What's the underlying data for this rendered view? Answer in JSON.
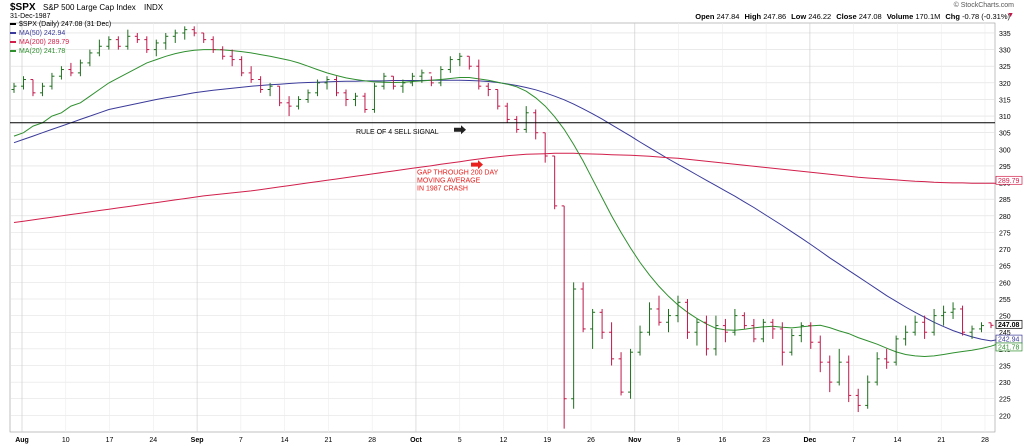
{
  "header": {
    "symbol": "$SPX",
    "name": "S&P 500 Large Cap Index",
    "exchange": "INDX",
    "date": "31-Dec-1987",
    "watermark": "© StockCharts.com",
    "ohlc": [
      {
        "label": "Open",
        "value": "247.84"
      },
      {
        "label": "High",
        "value": "247.86"
      },
      {
        "label": "Low",
        "value": "246.22"
      },
      {
        "label": "Close",
        "value": "247.08"
      },
      {
        "label": "Volume",
        "value": "170.1M"
      },
      {
        "label": "Chg",
        "value": "-0.78 (-0.31%)"
      }
    ]
  },
  "legend": [
    {
      "label": "$SPX (Daily) 247.08 (31 Dec)",
      "color": "#000000"
    },
    {
      "label": "MA(50) 242.94",
      "color": "#3a3a9a"
    },
    {
      "label": "MA(200) 289.79",
      "color": "#d11f4b"
    },
    {
      "label": "MA(20) 241.78",
      "color": "#2f8f2f"
    }
  ],
  "annotations": {
    "rule_label": "RULE OF 4 SELL SIGNAL",
    "gap_lines": [
      "GAP THROUGH 200 DAY",
      "MOVING AVERAGE",
      "IN 1987 CRASH"
    ]
  },
  "colors": {
    "up_bar": "#1f6f1f",
    "down_bar": "#c0184a",
    "ma50": "#3a3a9a",
    "ma200": "#d11f4b",
    "ma20": "#2f8f2f",
    "grid": "#dddddd",
    "annotation": "#e8201e"
  },
  "chart_data": {
    "type": "ohlc",
    "title": "$SPX S&P 500 Large Cap Index",
    "ylim": [
      215,
      338
    ],
    "yticks": [
      220,
      225,
      230,
      235,
      240,
      245,
      250,
      255,
      260,
      265,
      270,
      275,
      280,
      285,
      290,
      295,
      300,
      305,
      310,
      315,
      320,
      325,
      330,
      335
    ],
    "horizontal_line": 308,
    "x_ticks": [
      "Aug",
      "10",
      "17",
      "24",
      "Sep",
      "7",
      "14",
      "21",
      "28",
      "Oct",
      "5",
      "12",
      "19",
      "26",
      "Nov",
      "9",
      "16",
      "23",
      "Dec",
      "7",
      "14",
      "21",
      "28"
    ],
    "bars": [
      [
        318,
        320,
        317,
        319
      ],
      [
        319,
        322,
        318,
        321
      ],
      [
        321,
        321,
        316,
        317
      ],
      [
        317,
        320,
        316,
        319
      ],
      [
        319,
        323,
        318,
        322
      ],
      [
        322,
        325,
        321,
        324
      ],
      [
        324,
        326,
        322,
        323
      ],
      [
        323,
        327,
        322,
        326
      ],
      [
        326,
        330,
        325,
        329
      ],
      [
        329,
        333,
        328,
        331
      ],
      [
        331,
        334,
        330,
        333
      ],
      [
        333,
        334,
        330,
        331
      ],
      [
        331,
        336,
        330,
        334
      ],
      [
        334,
        335,
        332,
        333
      ],
      [
        333,
        334,
        329,
        330
      ],
      [
        330,
        333,
        328,
        332
      ],
      [
        332,
        335,
        330,
        334
      ],
      [
        334,
        336,
        332,
        335
      ],
      [
        335,
        337,
        333,
        336
      ],
      [
        336,
        337,
        334,
        335
      ],
      [
        335,
        335,
        332,
        333
      ],
      [
        333,
        334,
        329,
        330
      ],
      [
        330,
        331,
        327,
        328
      ],
      [
        328,
        330,
        325,
        327
      ],
      [
        327,
        328,
        322,
        323
      ],
      [
        323,
        325,
        320,
        321
      ],
      [
        321,
        322,
        317,
        318
      ],
      [
        318,
        320,
        316,
        319
      ],
      [
        319,
        319,
        313,
        314
      ],
      [
        314,
        316,
        310,
        313
      ],
      [
        313,
        316,
        312,
        315
      ],
      [
        315,
        318,
        314,
        317
      ],
      [
        317,
        321,
        316,
        320
      ],
      [
        320,
        322,
        318,
        321
      ],
      [
        321,
        322,
        316,
        317
      ],
      [
        317,
        318,
        313,
        315
      ],
      [
        315,
        317,
        313,
        316
      ],
      [
        316,
        317,
        311,
        312
      ],
      [
        312,
        320,
        311,
        319
      ],
      [
        319,
        323,
        318,
        322
      ],
      [
        322,
        322,
        318,
        319
      ],
      [
        319,
        321,
        317,
        320
      ],
      [
        320,
        323,
        319,
        322
      ],
      [
        322,
        324,
        320,
        323
      ],
      [
        323,
        322,
        319,
        320
      ],
      [
        320,
        325,
        319,
        324
      ],
      [
        324,
        328,
        323,
        327
      ],
      [
        327,
        329,
        325,
        328
      ],
      [
        328,
        328,
        324,
        325
      ],
      [
        325,
        327,
        318,
        319
      ],
      [
        319,
        320,
        316,
        318
      ],
      [
        318,
        318,
        312,
        313
      ],
      [
        313,
        314,
        308,
        309
      ],
      [
        309,
        310,
        305,
        306
      ],
      [
        306,
        313,
        305,
        311
      ],
      [
        311,
        312,
        303,
        305
      ],
      [
        305,
        305,
        296,
        298
      ],
      [
        298,
        298,
        282,
        283
      ],
      [
        283,
        283,
        216,
        225
      ],
      [
        225,
        260,
        222,
        258
      ],
      [
        258,
        260,
        245,
        246
      ],
      [
        246,
        252,
        240,
        251
      ],
      [
        251,
        252,
        243,
        245
      ],
      [
        245,
        248,
        235,
        237
      ],
      [
        237,
        239,
        226,
        227
      ],
      [
        227,
        240,
        225,
        239
      ],
      [
        239,
        247,
        238,
        245
      ],
      [
        245,
        254,
        244,
        252
      ],
      [
        252,
        256,
        247,
        248
      ],
      [
        248,
        252,
        245,
        250
      ],
      [
        250,
        256,
        248,
        254
      ],
      [
        254,
        255,
        243,
        245
      ],
      [
        245,
        249,
        241,
        248
      ],
      [
        248,
        250,
        238,
        240
      ],
      [
        240,
        250,
        238,
        247
      ],
      [
        247,
        249,
        242,
        245
      ],
      [
        245,
        252,
        244,
        250
      ],
      [
        250,
        251,
        246,
        247
      ],
      [
        247,
        249,
        242,
        243
      ],
      [
        243,
        249,
        242,
        248
      ],
      [
        248,
        249,
        243,
        246
      ],
      [
        246,
        248,
        235,
        239
      ],
      [
        239,
        246,
        238,
        244
      ],
      [
        244,
        248,
        242,
        247
      ],
      [
        247,
        248,
        240,
        242
      ],
      [
        242,
        244,
        233,
        236
      ],
      [
        236,
        238,
        227,
        230
      ],
      [
        230,
        240,
        229,
        236
      ],
      [
        236,
        238,
        224,
        226
      ],
      [
        226,
        228,
        221,
        223
      ],
      [
        223,
        232,
        222,
        230
      ],
      [
        230,
        239,
        229,
        237
      ],
      [
        237,
        240,
        234,
        236
      ],
      [
        236,
        244,
        235,
        243
      ],
      [
        243,
        247,
        241,
        245
      ],
      [
        245,
        250,
        244,
        248
      ],
      [
        248,
        250,
        243,
        245
      ],
      [
        245,
        252,
        244,
        250
      ],
      [
        250,
        253,
        247,
        251
      ],
      [
        251,
        254,
        249,
        252
      ],
      [
        252,
        253,
        244,
        245
      ],
      [
        245,
        247,
        243,
        246
      ],
      [
        246,
        248,
        245,
        247
      ],
      [
        247.84,
        247.86,
        246.22,
        247.08
      ]
    ],
    "series": [
      {
        "name": "MA(50)",
        "color": "#3a3a9a",
        "values": [
          302,
          303,
          304,
          305,
          306,
          307,
          308,
          309,
          310,
          311,
          312,
          312.6,
          313.2,
          313.8,
          314.4,
          315,
          315.5,
          316,
          316.5,
          317,
          317.4,
          317.8,
          318.1,
          318.4,
          318.7,
          319,
          319.2,
          319.4,
          319.6,
          319.8,
          320,
          320.1,
          320.2,
          320.3,
          320.4,
          320.5,
          320.5,
          320.6,
          320.6,
          320.6,
          320.7,
          320.7,
          320.7,
          320.7,
          320.8,
          320.8,
          320.8,
          320.8,
          320.7,
          320.6,
          320.4,
          320.1,
          319.7,
          319.2,
          318.6,
          317.9,
          317,
          316,
          314.9,
          313.6,
          312.2,
          310.7,
          309.1,
          307.4,
          305.7,
          304,
          302.2,
          300.5,
          298.8,
          297.1,
          295.5,
          293.9,
          292.3,
          290.7,
          289.1,
          287.5,
          285.9,
          284.2,
          282.5,
          280.7,
          278.9,
          277.1,
          275.2,
          273.3,
          271.4,
          269.4,
          267.4,
          265.5,
          263.6,
          261.7,
          259.8,
          257.9,
          256,
          254.3,
          252.6,
          251,
          249.5,
          248,
          246.7,
          245.5,
          244.5,
          243.6,
          242.9,
          242.4,
          242.94
        ]
      },
      {
        "name": "MA(200)",
        "color": "#d11f4b",
        "values": [
          278,
          278.4,
          278.8,
          279.2,
          279.6,
          280,
          280.4,
          280.8,
          281.2,
          281.6,
          282,
          282.4,
          282.8,
          283.2,
          283.6,
          284,
          284.4,
          284.8,
          285.2,
          285.6,
          286,
          286.3,
          286.6,
          286.9,
          287.2,
          287.5,
          287.9,
          288.3,
          288.7,
          289.1,
          289.5,
          289.9,
          290.3,
          290.7,
          291.1,
          291.5,
          291.9,
          292.3,
          292.7,
          293.1,
          293.5,
          293.9,
          294.3,
          294.7,
          295.1,
          295.5,
          295.9,
          296.3,
          296.7,
          297.1,
          297.5,
          297.8,
          298.1,
          298.3,
          298.5,
          298.6,
          298.7,
          298.8,
          298.8,
          298.8,
          298.7,
          298.6,
          298.5,
          298.4,
          298.3,
          298.2,
          298.1,
          297.9,
          297.7,
          297.5,
          297.3,
          297,
          296.7,
          296.4,
          296.1,
          295.8,
          295.5,
          295.2,
          294.9,
          294.6,
          294.3,
          294,
          293.7,
          293.4,
          293.1,
          292.8,
          292.5,
          292.2,
          291.9,
          291.6,
          291.4,
          291.2,
          291,
          290.8,
          290.6,
          290.4,
          290.3,
          290.1,
          290,
          289.9,
          289.9,
          289.8,
          289.8,
          289.8,
          289.79
        ]
      },
      {
        "name": "MA(20)",
        "color": "#2f8f2f",
        "values": [
          304,
          305,
          307,
          308,
          310,
          311,
          313,
          314,
          316,
          318,
          320,
          321.5,
          323,
          324.5,
          326,
          327,
          328,
          328.8,
          329.4,
          329.8,
          330,
          330,
          329.9,
          329.7,
          329.4,
          329,
          328.5,
          328,
          327.4,
          326.8,
          326,
          325,
          324,
          323,
          322.2,
          321.5,
          321,
          320.6,
          320.3,
          320.2,
          320.1,
          320.2,
          320.4,
          320.6,
          320.8,
          321,
          321.3,
          321.6,
          321.6,
          321.2,
          320.8,
          320.2,
          319.6,
          318.8,
          317.5,
          315.5,
          313,
          309.8,
          306,
          301.5,
          296.5,
          291,
          285.5,
          280,
          275,
          270.3,
          266,
          262.2,
          258.8,
          255.8,
          253.2,
          251,
          249.1,
          247.5,
          246.2,
          245.7,
          245.6,
          245.9,
          246.3,
          246.6,
          246.8,
          246.5,
          246.3,
          246.6,
          246.9,
          247.1,
          246.4,
          245.4,
          244.6,
          243.4,
          242.4,
          241.4,
          240.2,
          239.1,
          238.3,
          237.9,
          237.7,
          237.9,
          238.3,
          238.8,
          239.2,
          239.6,
          240.1,
          240.8,
          241.78
        ]
      }
    ]
  }
}
